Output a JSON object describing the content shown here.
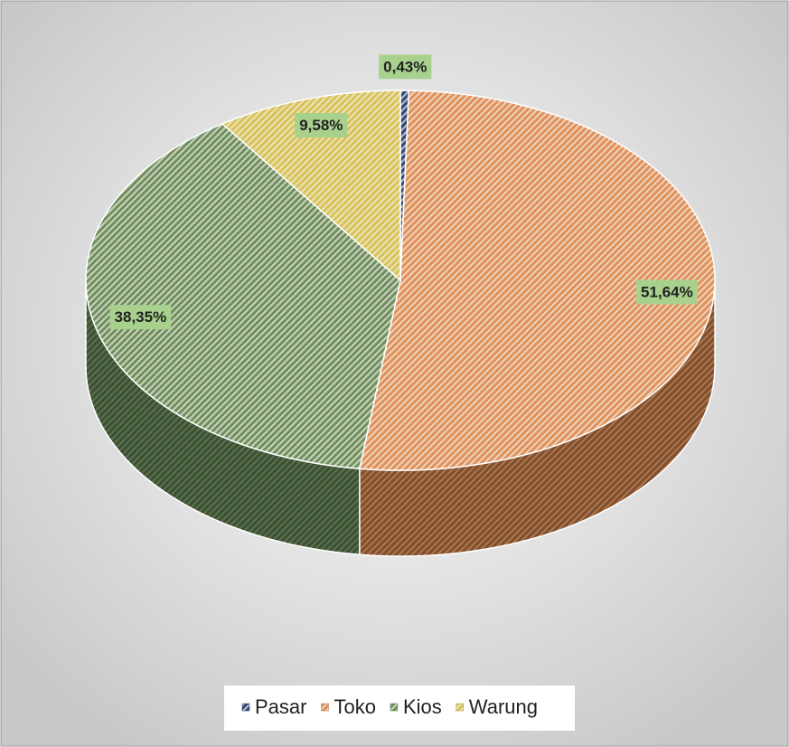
{
  "chart_data": {
    "type": "pie",
    "categories": [
      "Pasar",
      "Toko",
      "Kios",
      "Warung"
    ],
    "values": [
      0.43,
      51.64,
      38.35,
      9.58
    ],
    "value_labels": [
      "0,43%",
      "51,64%",
      "38,35%",
      "9,58%"
    ],
    "colors": [
      "#2e4a78",
      "#e0915a",
      "#6f8f5e",
      "#d8c358"
    ],
    "legend": "bottom"
  }
}
